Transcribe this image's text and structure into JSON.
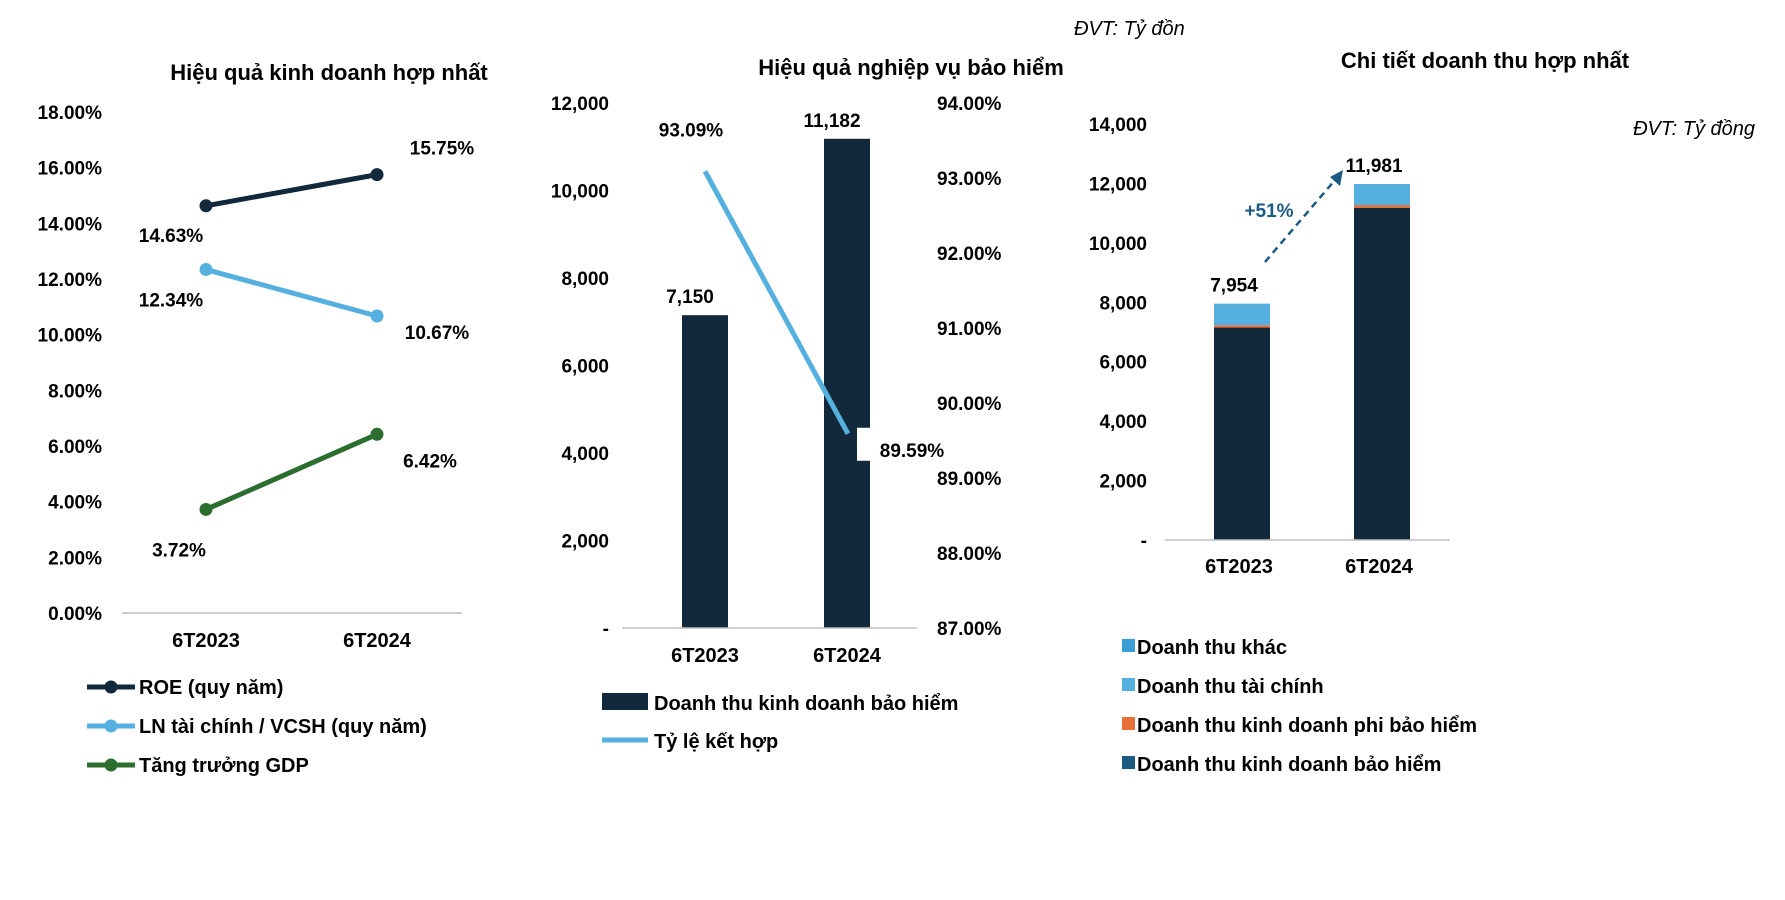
{
  "colors": {
    "navy": "#12293b",
    "light_blue": "#55b0e0",
    "mid_blue": "#3a9ed6",
    "orange": "#e8703a",
    "green": "#2c6e2f",
    "dark_blue": "#1d5a82",
    "axis": "#bfbfbf"
  },
  "chart_data": [
    {
      "type": "line",
      "title": "Hiệu quả kinh doanh hợp nhất",
      "categories": [
        "6T2023",
        "6T2024"
      ],
      "ylim": [
        0,
        18
      ],
      "y_ticks": [
        "0.00%",
        "2.00%",
        "4.00%",
        "6.00%",
        "8.00%",
        "10.00%",
        "12.00%",
        "14.00%",
        "16.00%",
        "18.00%"
      ],
      "series": [
        {
          "name": "ROE (quy năm)",
          "values": [
            14.63,
            15.75
          ],
          "labels": [
            "14.63%",
            "15.75%"
          ],
          "color": "#12293b"
        },
        {
          "name": "LN tài chính / VCSH (quy năm)",
          "values": [
            12.34,
            10.67
          ],
          "labels": [
            "12.34%",
            "10.67%"
          ],
          "color": "#55b0e0"
        },
        {
          "name": "Tăng trưởng GDP",
          "values": [
            3.72,
            6.42
          ],
          "labels": [
            "3.72%",
            "6.42%"
          ],
          "color": "#2c6e2f"
        }
      ],
      "legend_position": "bottom-left"
    },
    {
      "type": "bar",
      "title": "Hiệu quả nghiệp vụ bảo hiểm",
      "unit": "ĐVT: Tỷ đồn",
      "categories": [
        "6T2023",
        "6T2024"
      ],
      "ylim": [
        0,
        12000
      ],
      "y_ticks": [
        "-",
        "2,000",
        "4,000",
        "6,000",
        "8,000",
        "10,000",
        "12,000"
      ],
      "y2lim": [
        87,
        94
      ],
      "y2_ticks": [
        "87.00%",
        "88.00%",
        "89.00%",
        "90.00%",
        "91.00%",
        "92.00%",
        "93.00%",
        "94.00%"
      ],
      "series": [
        {
          "name": "Doanh thu kinh doanh bảo hiểm",
          "type": "bar",
          "axis": "left",
          "values": [
            7150,
            11182
          ],
          "labels": [
            "7,150",
            "11,182"
          ],
          "color": "#12293b"
        },
        {
          "name": "Tỷ lệ kết hợp",
          "type": "line",
          "axis": "right",
          "values": [
            93.09,
            89.59
          ],
          "labels": [
            "93.09%",
            "89.59%"
          ],
          "color": "#55b0e0"
        }
      ],
      "legend_position": "bottom"
    },
    {
      "type": "bar",
      "stacked": true,
      "title": "Chi tiết doanh thu hợp nhất",
      "unit": "ĐVT: Tỷ đồng",
      "categories": [
        "6T2023",
        "6T2024"
      ],
      "ylim": [
        0,
        14000
      ],
      "y_ticks": [
        "-",
        "2,000",
        "4,000",
        "6,000",
        "8,000",
        "10,000",
        "12,000",
        "14,000"
      ],
      "totals": [
        7954,
        11981
      ],
      "total_labels": [
        "7,954",
        "11,981"
      ],
      "growth_annotation": "+51%",
      "series": [
        {
          "name": "Doanh thu kinh doanh bảo hiểm",
          "values": [
            7150,
            11182
          ],
          "color": "#12293b"
        },
        {
          "name": "Doanh thu kinh doanh phi bảo hiểm",
          "values": [
            80,
            90
          ],
          "color": "#e8703a"
        },
        {
          "name": "Doanh thu tài chính",
          "values": [
            724,
            709
          ],
          "color": "#55b0e0"
        },
        {
          "name": "Doanh thu khác",
          "values": [
            0,
            0
          ],
          "color": "#3a9ed6"
        }
      ],
      "legend_entries": [
        {
          "name": "Doanh thu khác",
          "color": "#3a9ed6"
        },
        {
          "name": "Doanh thu tài chính",
          "color": "#55b0e0"
        },
        {
          "name": "Doanh thu kinh doanh phi bảo hiểm",
          "color": "#e8703a"
        },
        {
          "name": "Doanh thu kinh doanh bảo hiểm",
          "color": "#1d5a82"
        }
      ],
      "legend_position": "bottom"
    }
  ]
}
